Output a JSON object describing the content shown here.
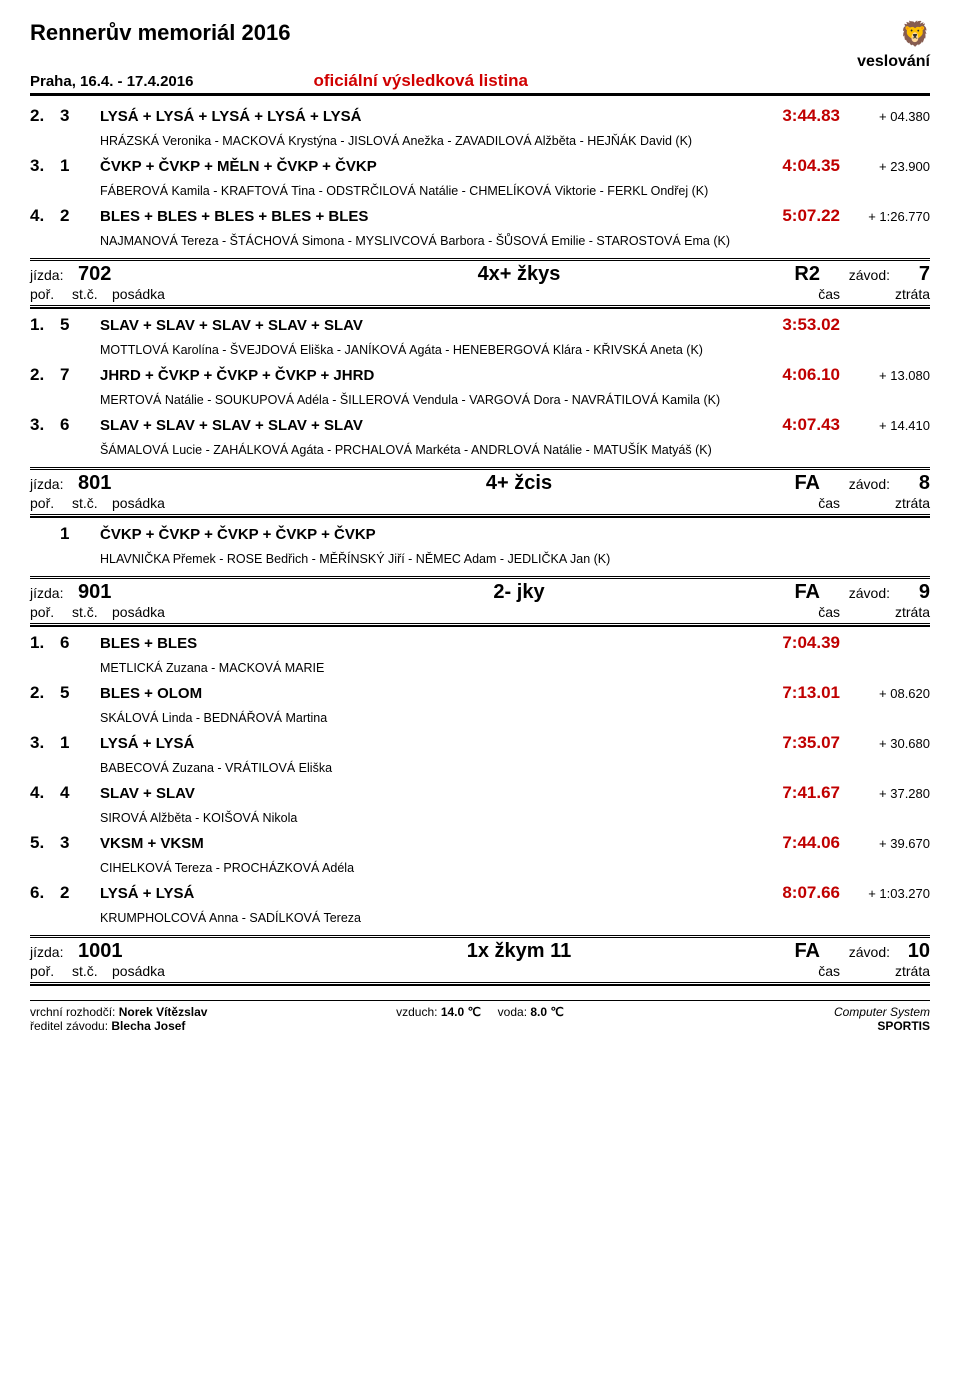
{
  "header": {
    "title": "Rennerův memoriál 2016",
    "sport": "veslování",
    "date_location": "Praha, 16.4. - 17.4.2016",
    "official": "oficiální výsledková listina"
  },
  "pre_results": [
    {
      "place": "2.",
      "lane": "3",
      "crew": "LYSÁ + LYSÁ + LYSÁ + LYSÁ + LYSÁ",
      "time": "3:44.83",
      "gap": "+ 04.380",
      "names": "HRÁZSKÁ Veronika - MACKOVÁ Krystýna - JISLOVÁ Anežka - ZAVADILOVÁ Alžběta - HEJŇÁK David (K)"
    },
    {
      "place": "3.",
      "lane": "1",
      "crew": "ČVKP + ČVKP + MĚLN + ČVKP + ČVKP",
      "time": "4:04.35",
      "gap": "+ 23.900",
      "names": "FÁBEROVÁ Kamila - KRAFTOVÁ Tina - ODSTRČILOVÁ Natálie - CHMELÍKOVÁ Viktorie - FERKL Ondřej (K)"
    },
    {
      "place": "4.",
      "lane": "2",
      "crew": "BLES + BLES + BLES + BLES + BLES",
      "time": "5:07.22",
      "gap": "+ 1:26.770",
      "names": "NAJMANOVÁ Tereza - ŠTÁCHOVÁ Simona - MYSLIVCOVÁ Barbora - ŠŮSOVÁ Emilie - STAROSTOVÁ Ema (K)"
    }
  ],
  "races": [
    {
      "jizda": "702",
      "event": "4x+ žkys",
      "phase": "R2",
      "zavod": "7",
      "results": [
        {
          "place": "1.",
          "lane": "5",
          "crew": "SLAV + SLAV + SLAV + SLAV + SLAV",
          "time": "3:53.02",
          "gap": "",
          "names": "MOTTLOVÁ Karolína - ŠVEJDOVÁ Eliška - JANÍKOVÁ Agáta - HENEBERGOVÁ Klára - KŘIVSKÁ Aneta (K)"
        },
        {
          "place": "2.",
          "lane": "7",
          "crew": "JHRD + ČVKP + ČVKP + ČVKP + JHRD",
          "time": "4:06.10",
          "gap": "+ 13.080",
          "names": "MERTOVÁ Natálie - SOUKUPOVÁ Adéla - ŠILLEROVÁ Vendula - VARGOVÁ Dora - NAVRÁTILOVÁ Kamila (K)"
        },
        {
          "place": "3.",
          "lane": "6",
          "crew": "SLAV + SLAV + SLAV + SLAV + SLAV",
          "time": "4:07.43",
          "gap": "+ 14.410",
          "names": "ŠÁMALOVÁ Lucie - ZAHÁLKOVÁ Agáta - PRCHALOVÁ Markéta - ANDRLOVÁ Natálie - MATUŠÍK Matyáš (K)"
        }
      ]
    },
    {
      "jizda": "801",
      "event": "4+ žcis",
      "phase": "FA",
      "zavod": "8",
      "results": [
        {
          "place": "",
          "lane": "1",
          "crew": "ČVKP + ČVKP + ČVKP + ČVKP + ČVKP",
          "time": "",
          "gap": "",
          "names": "HLAVNIČKA Přemek - ROSE Bedřich - MĚŘÍNSKÝ Jiří - NĚMEC Adam - JEDLIČKA Jan (K)"
        }
      ]
    },
    {
      "jizda": "901",
      "event": "2- jky",
      "phase": "FA",
      "zavod": "9",
      "results": [
        {
          "place": "1.",
          "lane": "6",
          "crew": "BLES + BLES",
          "time": "7:04.39",
          "gap": "",
          "names": "METLICKÁ Zuzana - MACKOVÁ MARIE"
        },
        {
          "place": "2.",
          "lane": "5",
          "crew": "BLES + OLOM",
          "time": "7:13.01",
          "gap": "+ 08.620",
          "names": "SKÁLOVÁ Linda - BEDNÁŘOVÁ Martina"
        },
        {
          "place": "3.",
          "lane": "1",
          "crew": "LYSÁ + LYSÁ",
          "time": "7:35.07",
          "gap": "+ 30.680",
          "names": "BABECOVÁ Zuzana - VRÁTILOVÁ Eliška"
        },
        {
          "place": "4.",
          "lane": "4",
          "crew": "SLAV + SLAV",
          "time": "7:41.67",
          "gap": "+ 37.280",
          "names": "SIROVÁ Alžběta - KOIŠOVÁ Nikola"
        },
        {
          "place": "5.",
          "lane": "3",
          "crew": "VKSM + VKSM",
          "time": "7:44.06",
          "gap": "+ 39.670",
          "names": "CIHELKOVÁ Tereza - PROCHÁZKOVÁ Adéla"
        },
        {
          "place": "6.",
          "lane": "2",
          "crew": "LYSÁ + LYSÁ",
          "time": "8:07.66",
          "gap": "+ 1:03.270",
          "names": "KRUMPHOLCOVÁ Anna - SADÍLKOVÁ Tereza"
        }
      ]
    },
    {
      "jizda": "1001",
      "event": "1x žkym 11",
      "phase": "FA",
      "zavod": "10",
      "results": []
    }
  ],
  "labels": {
    "jizda": "jízda:",
    "zavod": "závod:",
    "por": "poř.",
    "stc": "st.č.",
    "posadka": "posádka",
    "cas": "čas",
    "ztrata": "ztráta"
  },
  "footer": {
    "rozhodci_lbl": "vrchní rozhodčí:",
    "rozhodci": "Norek Vítězslav",
    "reditel_lbl": "ředitel závodu:",
    "reditel": "Blecha Josef",
    "vzduch_lbl": "vzduch:",
    "vzduch": "14.0 ℃",
    "voda_lbl": "voda:",
    "voda": "8.0 ℃",
    "cs": "Computer System",
    "brand": "SPORTIS"
  }
}
